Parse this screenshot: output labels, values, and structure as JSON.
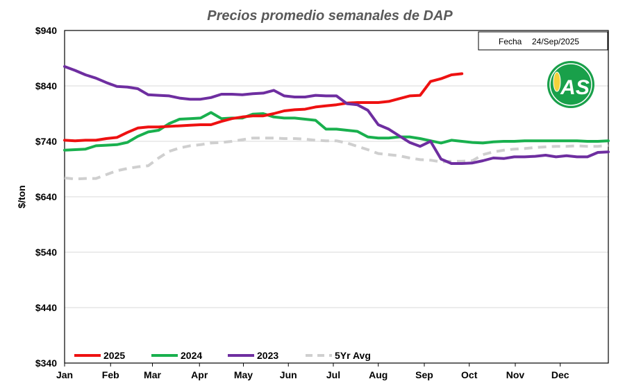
{
  "chart_data": {
    "type": "line",
    "title": "Precios promedio semanales de DAP",
    "ylabel": "$/ton",
    "xlabel": "",
    "ylim": [
      340,
      940
    ],
    "yticks": [
      940,
      840,
      740,
      640,
      540,
      440,
      340
    ],
    "ytick_labels": [
      "$940",
      "$840",
      "$740",
      "$640",
      "$540",
      "$440",
      "$340"
    ],
    "xtick_labels": [
      "Jan",
      "Feb",
      "Mar",
      "Apr",
      "May",
      "Jun",
      "Jul",
      "Aug",
      "Sep",
      "Oct",
      "Nov",
      "Dec"
    ],
    "week_range": [
      1,
      53
    ],
    "month_start_weeks": [
      1,
      5.4,
      9.4,
      13.9,
      18.1,
      22.4,
      26.7,
      31,
      35.4,
      39.7,
      44.1,
      48.4
    ],
    "grid": true,
    "legend_position": "bottom-left",
    "date_label": "Fecha",
    "date_value": "24/Sep/2025",
    "logo_text": "AS",
    "series": [
      {
        "name": "2025",
        "color": "#ee1111",
        "dash": false,
        "points": [
          [
            1,
            742
          ],
          [
            2,
            741
          ],
          [
            3,
            742
          ],
          [
            4,
            742
          ],
          [
            5,
            745
          ],
          [
            6,
            747
          ],
          [
            7,
            756
          ],
          [
            8,
            764
          ],
          [
            9,
            766
          ],
          [
            10,
            766
          ],
          [
            11,
            767
          ],
          [
            12,
            768
          ],
          [
            13,
            769
          ],
          [
            14,
            770
          ],
          [
            15,
            770
          ],
          [
            16,
            776
          ],
          [
            17,
            781
          ],
          [
            18,
            784
          ],
          [
            19,
            786
          ],
          [
            20,
            786
          ],
          [
            21,
            790
          ],
          [
            22,
            795
          ],
          [
            23,
            797
          ],
          [
            24,
            798
          ],
          [
            25,
            802
          ],
          [
            26,
            804
          ],
          [
            27,
            806
          ],
          [
            28,
            809
          ],
          [
            29,
            810
          ],
          [
            30,
            810
          ],
          [
            31,
            810
          ],
          [
            32,
            812
          ],
          [
            33,
            817
          ],
          [
            34,
            822
          ],
          [
            35,
            823
          ],
          [
            36,
            848
          ],
          [
            37,
            853
          ],
          [
            38,
            860
          ],
          [
            39,
            862
          ]
        ]
      },
      {
        "name": "2024",
        "color": "#19b04e",
        "dash": false,
        "points": [
          [
            1,
            724
          ],
          [
            2,
            725
          ],
          [
            3,
            726
          ],
          [
            4,
            732
          ],
          [
            5,
            733
          ],
          [
            6,
            734
          ],
          [
            7,
            738
          ],
          [
            8,
            749
          ],
          [
            9,
            757
          ],
          [
            10,
            760
          ],
          [
            11,
            772
          ],
          [
            12,
            780
          ],
          [
            13,
            781
          ],
          [
            14,
            782
          ],
          [
            15,
            792
          ],
          [
            16,
            781
          ],
          [
            17,
            782
          ],
          [
            18,
            782
          ],
          [
            19,
            789
          ],
          [
            20,
            790
          ],
          [
            21,
            784
          ],
          [
            22,
            782
          ],
          [
            23,
            782
          ],
          [
            24,
            780
          ],
          [
            25,
            778
          ],
          [
            26,
            762
          ],
          [
            27,
            762
          ],
          [
            28,
            760
          ],
          [
            29,
            758
          ],
          [
            30,
            748
          ],
          [
            31,
            746
          ],
          [
            32,
            746
          ],
          [
            33,
            748
          ],
          [
            34,
            748
          ],
          [
            35,
            745
          ],
          [
            36,
            741
          ],
          [
            37,
            737
          ],
          [
            38,
            742
          ],
          [
            39,
            740
          ],
          [
            40,
            738
          ],
          [
            41,
            737
          ],
          [
            42,
            739
          ],
          [
            43,
            740
          ],
          [
            44,
            740
          ],
          [
            45,
            741
          ],
          [
            46,
            741
          ],
          [
            47,
            741
          ],
          [
            48,
            741
          ],
          [
            49,
            741
          ],
          [
            50,
            741
          ],
          [
            51,
            740
          ],
          [
            52,
            740
          ],
          [
            53,
            741
          ]
        ]
      },
      {
        "name": "2023",
        "color": "#6e2ea0",
        "dash": false,
        "points": [
          [
            1,
            875
          ],
          [
            2,
            868
          ],
          [
            3,
            860
          ],
          [
            4,
            854
          ],
          [
            5,
            846
          ],
          [
            6,
            839
          ],
          [
            7,
            838
          ],
          [
            8,
            835
          ],
          [
            9,
            824
          ],
          [
            10,
            823
          ],
          [
            11,
            822
          ],
          [
            12,
            818
          ],
          [
            13,
            816
          ],
          [
            14,
            816
          ],
          [
            15,
            819
          ],
          [
            16,
            825
          ],
          [
            17,
            825
          ],
          [
            18,
            824
          ],
          [
            19,
            826
          ],
          [
            20,
            827
          ],
          [
            21,
            832
          ],
          [
            22,
            822
          ],
          [
            23,
            820
          ],
          [
            24,
            820
          ],
          [
            25,
            823
          ],
          [
            26,
            822
          ],
          [
            27,
            822
          ],
          [
            28,
            808
          ],
          [
            29,
            806
          ],
          [
            30,
            796
          ],
          [
            31,
            770
          ],
          [
            32,
            762
          ],
          [
            33,
            750
          ],
          [
            34,
            738
          ],
          [
            35,
            731
          ],
          [
            36,
            740
          ],
          [
            37,
            708
          ],
          [
            38,
            700
          ],
          [
            39,
            700
          ],
          [
            40,
            701
          ],
          [
            41,
            705
          ],
          [
            42,
            710
          ],
          [
            43,
            709
          ],
          [
            44,
            712
          ],
          [
            45,
            712
          ],
          [
            46,
            713
          ],
          [
            47,
            715
          ],
          [
            48,
            712
          ],
          [
            49,
            714
          ],
          [
            50,
            712
          ],
          [
            51,
            712
          ],
          [
            52,
            720
          ],
          [
            53,
            721
          ]
        ]
      },
      {
        "name": "5Yr Avg",
        "color": "#cfcfcf",
        "dash": true,
        "points": [
          [
            1,
            674
          ],
          [
            2,
            672
          ],
          [
            3,
            673
          ],
          [
            4,
            673
          ],
          [
            5,
            680
          ],
          [
            6,
            687
          ],
          [
            7,
            691
          ],
          [
            8,
            694
          ],
          [
            9,
            696
          ],
          [
            10,
            710
          ],
          [
            11,
            722
          ],
          [
            12,
            728
          ],
          [
            13,
            732
          ],
          [
            14,
            734
          ],
          [
            15,
            737
          ],
          [
            16,
            738
          ],
          [
            17,
            740
          ],
          [
            18,
            743
          ],
          [
            19,
            746
          ],
          [
            20,
            746
          ],
          [
            21,
            746
          ],
          [
            22,
            745
          ],
          [
            23,
            745
          ],
          [
            24,
            744
          ],
          [
            25,
            742
          ],
          [
            26,
            741
          ],
          [
            27,
            741
          ],
          [
            28,
            737
          ],
          [
            29,
            731
          ],
          [
            30,
            725
          ],
          [
            31,
            718
          ],
          [
            32,
            716
          ],
          [
            33,
            714
          ],
          [
            34,
            710
          ],
          [
            35,
            707
          ],
          [
            36,
            706
          ],
          [
            37,
            703
          ],
          [
            38,
            704
          ],
          [
            39,
            704
          ],
          [
            40,
            705
          ],
          [
            41,
            716
          ],
          [
            42,
            721
          ],
          [
            43,
            724
          ],
          [
            44,
            726
          ],
          [
            45,
            727
          ],
          [
            46,
            729
          ],
          [
            47,
            730
          ],
          [
            48,
            731
          ],
          [
            49,
            731
          ],
          [
            50,
            732
          ],
          [
            51,
            731
          ],
          [
            52,
            731
          ],
          [
            53,
            733
          ]
        ]
      }
    ]
  }
}
